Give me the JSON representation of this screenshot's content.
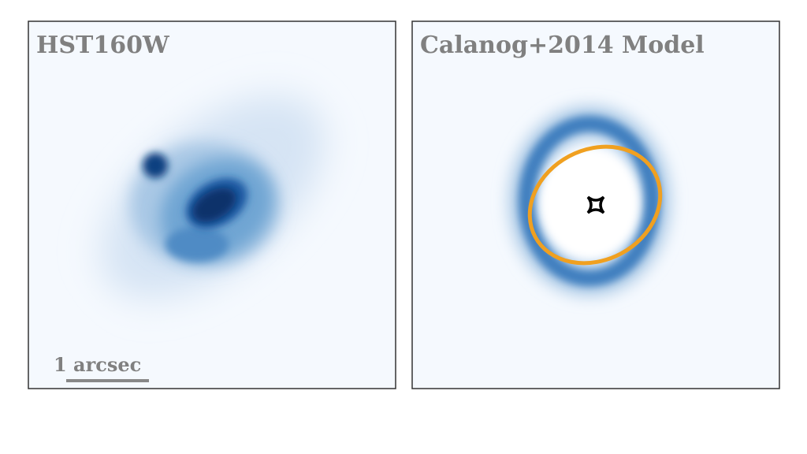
{
  "panels": [
    {
      "title": "HST160W",
      "scale_label": "1 arcsec"
    },
    {
      "title": "Calanog+2014 Model"
    }
  ]
}
